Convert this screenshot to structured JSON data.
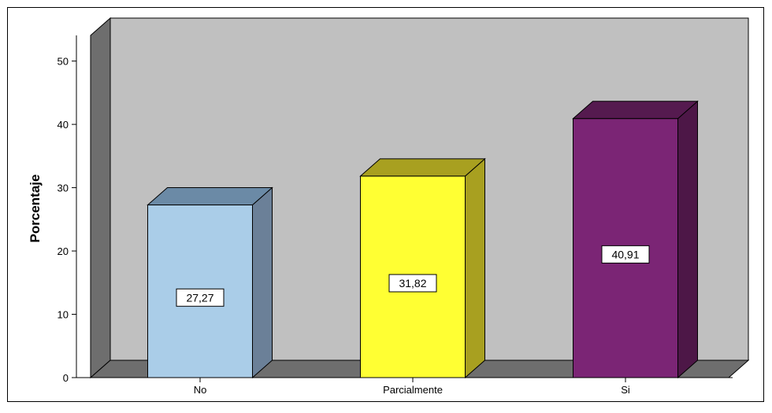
{
  "chart_data": {
    "type": "bar",
    "categories": [
      "No",
      "Parcialmente",
      "Si"
    ],
    "values": [
      27.27,
      31.82,
      40.91
    ],
    "value_labels": [
      "27,27",
      "31,82",
      "40,91"
    ],
    "title": "",
    "xlabel": "",
    "ylabel": "Porcentaje",
    "ylim": [
      0,
      50
    ],
    "yticks": [
      "0",
      "10",
      "20",
      "30",
      "40",
      "50"
    ],
    "grid": false,
    "style": "3d",
    "colors": {
      "background": "#c0c0c0",
      "floor": "#6e6e6e",
      "side_wall": "#6e6e6e",
      "bars": [
        {
          "front": "#aacde8",
          "top": "#6b8aa6",
          "side": "#6b8098"
        },
        {
          "front": "#ffff33",
          "top": "#a8a020",
          "side": "#a8a020"
        },
        {
          "front": "#7b2575",
          "top": "#551a4f",
          "side": "#4d1747"
        }
      ]
    }
  }
}
